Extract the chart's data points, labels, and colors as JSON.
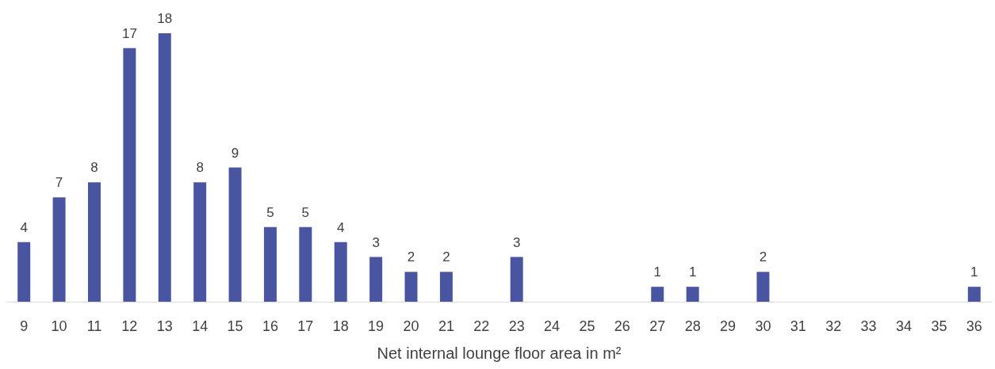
{
  "chart_data": {
    "type": "bar",
    "xlabel": "Net internal lounge floor area in m²",
    "categories": [
      "9",
      "10",
      "11",
      "12",
      "13",
      "14",
      "15",
      "16",
      "17",
      "18",
      "19",
      "20",
      "21",
      "22",
      "23",
      "24",
      "25",
      "26",
      "27",
      "28",
      "29",
      "30",
      "31",
      "32",
      "33",
      "34",
      "35",
      "36"
    ],
    "values": [
      4,
      7,
      8,
      17,
      18,
      8,
      9,
      5,
      5,
      4,
      3,
      2,
      2,
      null,
      3,
      null,
      null,
      null,
      1,
      1,
      null,
      2,
      null,
      null,
      null,
      null,
      null,
      1
    ],
    "color": "#4a55a2",
    "data_labels": true
  }
}
